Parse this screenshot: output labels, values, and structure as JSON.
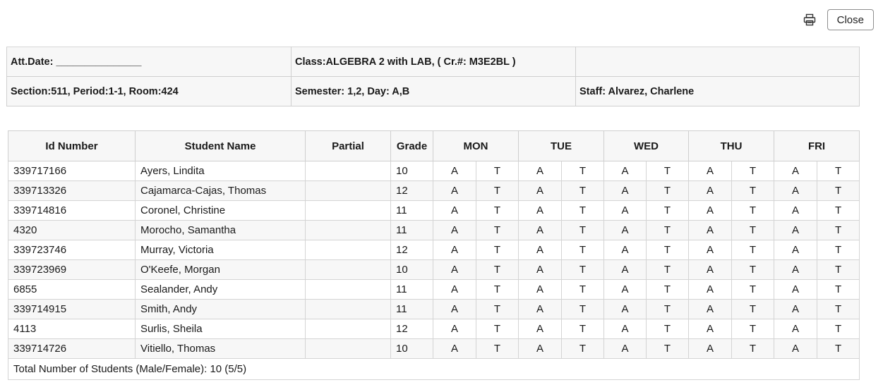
{
  "toolbar": {
    "print_icon": "printer-icon",
    "close_label": "Close"
  },
  "info": {
    "att_date": "Att.Date: _______________",
    "class_label": "Class:ALGEBRA 2 with LAB, ( Cr.#: M3E2BL )",
    "empty_cell": "",
    "section": "Section:511, Period:1-1, Room:424",
    "semester": "Semester: 1,2, Day: A,B",
    "staff": "Staff: Alvarez, Charlene"
  },
  "table": {
    "headers": [
      "Id Number",
      "Student Name",
      "Partial",
      "Grade",
      "MON",
      "TUE",
      "WED",
      "THU",
      "FRI"
    ],
    "mark_a": "A",
    "mark_t": "T",
    "rows": [
      {
        "id": "339717166",
        "name": "Ayers, Lindita",
        "partial": "",
        "grade": "10"
      },
      {
        "id": "339713326",
        "name": "Cajamarca-Cajas, Thomas",
        "partial": "",
        "grade": "12"
      },
      {
        "id": "339714816",
        "name": "Coronel, Christine",
        "partial": "",
        "grade": "11"
      },
      {
        "id": "4320",
        "name": "Morocho, Samantha",
        "partial": "",
        "grade": "11"
      },
      {
        "id": "339723746",
        "name": "Murray, Victoria",
        "partial": "",
        "grade": "12"
      },
      {
        "id": "339723969",
        "name": "O'Keefe, Morgan",
        "partial": "",
        "grade": "10"
      },
      {
        "id": "6855",
        "name": "Sealander, Andy",
        "partial": "",
        "grade": "11"
      },
      {
        "id": "339714915",
        "name": "Smith, Andy",
        "partial": "",
        "grade": "11"
      },
      {
        "id": "4113",
        "name": "Surlis, Sheila",
        "partial": "",
        "grade": "12"
      },
      {
        "id": "339714726",
        "name": "Vitiello, Thomas",
        "partial": "",
        "grade": "10"
      }
    ],
    "total": "Total Number of Students (Male/Female): 10 (5/5)"
  }
}
